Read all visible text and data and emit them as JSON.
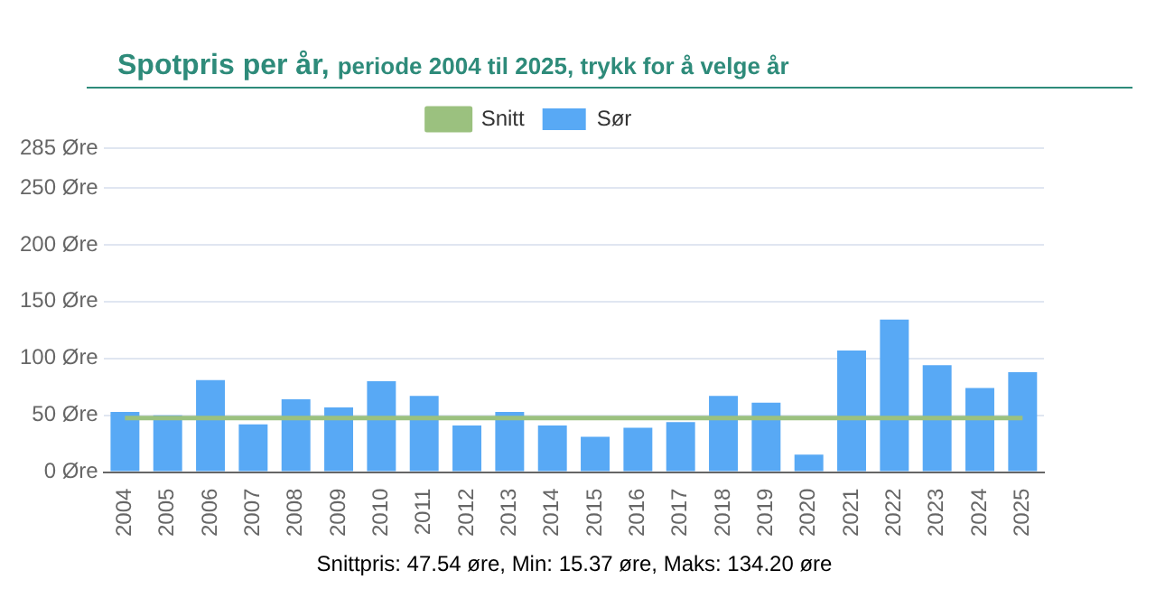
{
  "chart_data": {
    "type": "bar",
    "title": "Spotpris per år,",
    "subtitle": "periode 2004 til 2025, trykk for å velge år",
    "categories": [
      "2004",
      "2005",
      "2006",
      "2007",
      "2008",
      "2009",
      "2010",
      "2011",
      "2012",
      "2013",
      "2014",
      "2015",
      "2016",
      "2017",
      "2018",
      "2019",
      "2020",
      "2021",
      "2022",
      "2023",
      "2024",
      "2025"
    ],
    "series": [
      {
        "name": "Sør",
        "color": "#58a9f5",
        "values": [
          53,
          50,
          81,
          42,
          64,
          57,
          80,
          67,
          41,
          53,
          41,
          31,
          39,
          44,
          67,
          61,
          15.37,
          107,
          134.2,
          94,
          74,
          88
        ]
      },
      {
        "name": "Snitt",
        "type": "line",
        "color": "#9bc17f",
        "values": [
          47.54,
          47.54,
          47.54,
          47.54,
          47.54,
          47.54,
          47.54,
          47.54,
          47.54,
          47.54,
          47.54,
          47.54,
          47.54,
          47.54,
          47.54,
          47.54,
          47.54,
          47.54,
          47.54,
          47.54,
          47.54,
          47.54
        ]
      }
    ],
    "ylim": [
      0,
      285
    ],
    "yticks": [
      {
        "value": 0,
        "label": "0 Øre"
      },
      {
        "value": 50,
        "label": "50 Øre"
      },
      {
        "value": 100,
        "label": "100 Øre"
      },
      {
        "value": 150,
        "label": "150 Øre"
      },
      {
        "value": 200,
        "label": "200 Øre"
      },
      {
        "value": 250,
        "label": "250 Øre"
      },
      {
        "value": 285,
        "label": "285 Øre"
      }
    ],
    "grid": "y",
    "legend": "top",
    "marker": "none",
    "annotations": [
      "Snittpris: 47.54 øre, Min: 15.37 øre, Maks: 134.20 øre"
    ]
  }
}
